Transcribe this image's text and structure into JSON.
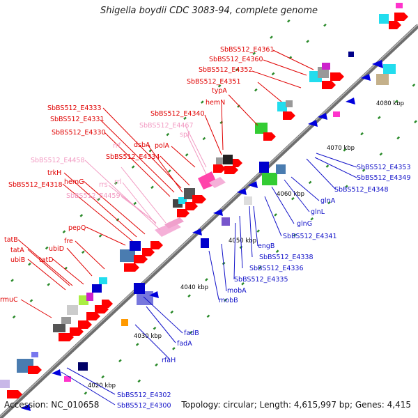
{
  "title": "Shigella boydii CDC 3083-94, complete genome",
  "footer": {
    "accession": "Accession: NC_010658",
    "summary": "Topology: circular; Length: 4,615,997 bp; Genes: 4,415"
  },
  "colors": {
    "backbone": "#8c8c8c",
    "plus_strand_label": "#e00000",
    "minus_strand_label": "#1010c8",
    "rna_label": "#f29ac2",
    "tick_marks": "#2a8a2a"
  },
  "ticks": [
    "4020 kbp",
    "4030 kbp",
    "4040 kbp",
    "4050 kbp",
    "4060 kbp",
    "4070 kbp",
    "4080 kbp"
  ],
  "plus_labels": [
    "rmuC",
    "ubiB",
    "tatA",
    "tatB",
    "tatD",
    "ubiD",
    "fre",
    "pepQ",
    "SbBS512_E4318",
    "hemG",
    "trkH",
    "SbBS512_E4330",
    "SbBS512_E4331",
    "SbBS512_E4333",
    "SbBS512_E4334",
    "dsbA",
    "polA",
    "SbBS512_E4340",
    "hemN",
    "typA",
    "SbBS512_E4351",
    "SbBS512_E4352",
    "SbBS512_E4360",
    "SbBS512_E4361"
  ],
  "rna_labels": [
    "SbBS512_E4458",
    "SbBS512_E4459",
    "rrs",
    "rrf",
    "rrl",
    "spf",
    "SbBS512_E4467"
  ],
  "minus_labels": [
    "SbBS512_E4300",
    "SbBS512_E4302",
    "rfaH",
    "fadA",
    "fadB",
    "mobB",
    "mobA",
    "SbBS512_E4335",
    "SbBS512_E4336",
    "SbBS512_E4338",
    "engB",
    "SbBS512_E4341",
    "glnG",
    "glnL",
    "glnA",
    "SbBS512_E4348",
    "SbBS512_E4349",
    "SbBS512_E4353"
  ]
}
